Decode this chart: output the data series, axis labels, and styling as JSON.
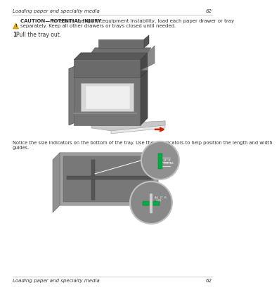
{
  "bg_color": "#ffffff",
  "header_text": "Loading paper and specialty media",
  "header_page": "62",
  "caution_bold": "CAUTION—POTENTIAL INJURY:",
  "caution_rest": " To reduce the risk of equipment instability, load each paper drawer or tray",
  "caution_line2": "separately. Keep all other drawers or trays closed until needed.",
  "step1_num": "1",
  "step1_rest": "Pull the tray out.",
  "notice_line1": "Notice the size indicators on the bottom of the tray. Use these indicators to help position the length and width",
  "notice_line2": "guides.",
  "footer_text": "Loading paper and specialty media",
  "footer_page": "62",
  "text_color": "#333333",
  "gray_line": "#bbbbbb",
  "warn_yellow": "#e6a817",
  "warn_dark": "#c8920a",
  "printer_dark": "#5a5a5a",
  "printer_mid": "#787878",
  "printer_light": "#a0a0a0",
  "printer_face": "#d4d4d4",
  "printer_white": "#eeeeee",
  "tray_color": "#e0e0e0",
  "arrow_red": "#cc2200",
  "circle_border": "#d0d0d0",
  "green_accent": "#00aa44",
  "tray_detail_dark": "#686868",
  "tray_detail_mid": "#909090",
  "tray_detail_light": "#b0b0b0"
}
